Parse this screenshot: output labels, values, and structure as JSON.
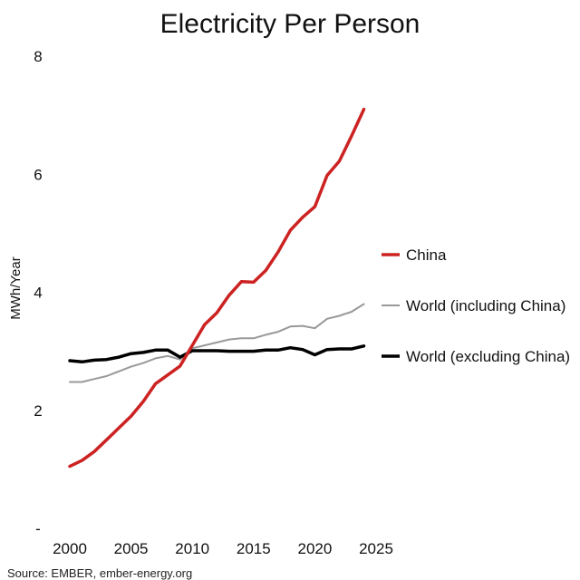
{
  "chart_data": {
    "type": "line",
    "title": "Electricity Per Person",
    "ylabel": "MWh/Year",
    "xlabel": "",
    "xlim": [
      2000,
      2025
    ],
    "ylim": [
      0,
      8
    ],
    "x_ticks": [
      "2000",
      "2005",
      "2010",
      "2015",
      "2020",
      "2025"
    ],
    "y_ticks": [
      "-",
      "2",
      "4",
      "6",
      "8"
    ],
    "grid": false,
    "legend_placement": "right",
    "source": "Source: EMBER, ember-energy.org",
    "x": [
      2000,
      2001,
      2002,
      2003,
      2004,
      2005,
      2006,
      2007,
      2008,
      2009,
      2010,
      2011,
      2012,
      2013,
      2014,
      2015,
      2016,
      2017,
      2018,
      2019,
      2020,
      2021,
      2022,
      2023,
      2024
    ],
    "series": [
      {
        "name": "China",
        "color": "#cc2222",
        "values": [
          1.05,
          1.15,
          1.3,
          1.5,
          1.7,
          1.9,
          2.15,
          2.45,
          2.6,
          2.75,
          3.1,
          3.45,
          3.65,
          3.95,
          4.18,
          4.17,
          4.37,
          4.68,
          5.05,
          5.27,
          5.45,
          5.98,
          6.22,
          6.65,
          7.1
        ]
      },
      {
        "name": "World (including China)",
        "color": "#999999",
        "values": [
          2.48,
          2.48,
          2.53,
          2.58,
          2.66,
          2.74,
          2.8,
          2.88,
          2.92,
          2.86,
          3.05,
          3.1,
          3.15,
          3.2,
          3.22,
          3.22,
          3.28,
          3.33,
          3.42,
          3.43,
          3.39,
          3.55,
          3.6,
          3.67,
          3.8
        ]
      },
      {
        "name": "World (excluding China)",
        "color": "#000000",
        "values": [
          2.84,
          2.82,
          2.85,
          2.86,
          2.9,
          2.96,
          2.98,
          3.02,
          3.02,
          2.9,
          3.01,
          3.01,
          3.01,
          3.0,
          3.0,
          3.0,
          3.02,
          3.02,
          3.06,
          3.03,
          2.94,
          3.03,
          3.04,
          3.04,
          3.09
        ]
      }
    ]
  }
}
